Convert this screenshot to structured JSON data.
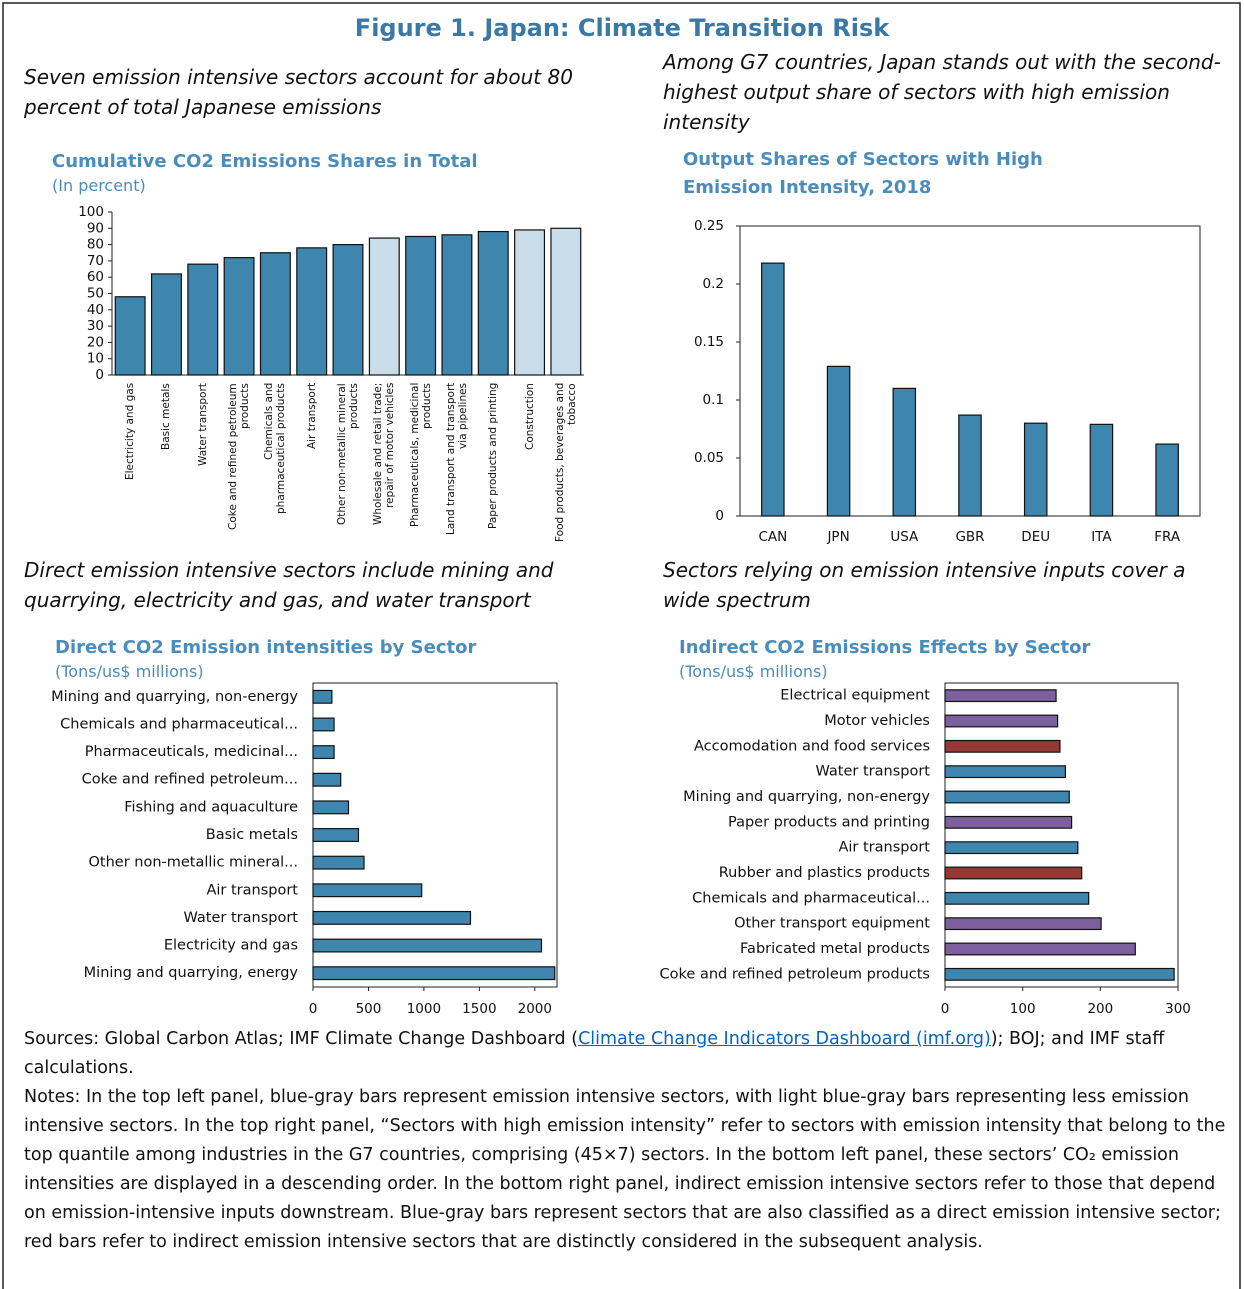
{
  "title": "Figure 1. Japan: Climate Transition Risk",
  "chart_data": [
    {
      "type": "bar",
      "orientation": "vertical",
      "caption": "Seven emission intensive sectors account for about 80 percent of total Japanese emissions",
      "title": "Cumulative CO2 Emissions Shares in Total",
      "subtitle": "(In percent)",
      "categories": [
        "Electricity and gas",
        "Basic metals",
        "Water transport",
        "Coke and refined petroleum products",
        "Chemicals and pharmaceutical products",
        "Air transport",
        "Other non-metallic mineral products",
        "Wholesale and retail trade; repair of motor vehicles",
        "Pharmaceuticals, medicinal products",
        "Land transport and transport via pipelines",
        "Paper products and printing",
        "Construction",
        "Food products, beverages and tobacco"
      ],
      "values": [
        48,
        62,
        68,
        72,
        75,
        78,
        80,
        84,
        85,
        86,
        88,
        89,
        90
      ],
      "colors": [
        "#3f86ae",
        "#3f86ae",
        "#3f86ae",
        "#3f86ae",
        "#3f86ae",
        "#3f86ae",
        "#3f86ae",
        "#c8dcea",
        "#3f86ae",
        "#3f86ae",
        "#3f86ae",
        "#c8dcea",
        "#c8dcea"
      ],
      "ylim": [
        0,
        100
      ],
      "yticks": [
        0,
        10,
        20,
        30,
        40,
        50,
        60,
        70,
        80,
        90,
        100
      ]
    },
    {
      "type": "bar",
      "orientation": "vertical",
      "caption": "Among G7 countries, Japan stands out with the second-highest output share of sectors with high emission intensity",
      "title": "Output Shares of Sectors with High Emission Intensity, 2018",
      "categories": [
        "CAN",
        "JPN",
        "USA",
        "GBR",
        "DEU",
        "ITA",
        "FRA"
      ],
      "values": [
        0.218,
        0.129,
        0.11,
        0.087,
        0.08,
        0.079,
        0.062
      ],
      "color": "#3f86ae",
      "ylim": [
        0,
        0.25
      ],
      "yticks": [
        0,
        0.05,
        0.1,
        0.15,
        0.2,
        0.25
      ]
    },
    {
      "type": "bar",
      "orientation": "horizontal",
      "caption": "Direct emission intensive sectors include mining and quarrying, electricity and gas, and water transport",
      "title": "Direct CO2 Emission intensities by Sector",
      "subtitle": "(Tons/us$ millions)",
      "categories": [
        "Mining and quarrying, non-energy",
        "Chemicals and pharmaceutical...",
        "Pharmaceuticals, medicinal...",
        "Coke and refined petroleum...",
        "Fishing and aquaculture",
        "Basic metals",
        "Other non-metallic mineral...",
        "Air transport",
        "Water transport",
        "Electricity and gas",
        "Mining and quarrying, energy"
      ],
      "values": [
        170,
        190,
        190,
        250,
        320,
        410,
        460,
        980,
        1420,
        2060,
        2180
      ],
      "color": "#3f86ae",
      "xlim": [
        0,
        2200
      ],
      "xticks": [
        0,
        500,
        1000,
        1500,
        2000
      ]
    },
    {
      "type": "bar",
      "orientation": "horizontal",
      "caption": "Sectors relying on emission intensive inputs cover a wide spectrum",
      "title": "Indirect CO2 Emissions Effects by Sector",
      "subtitle": "(Tons/us$ millions)",
      "categories": [
        "Electrical equipment",
        "Motor vehicles",
        "Accomodation and food services",
        "Water transport",
        "Mining and quarrying, non-energy",
        "Paper products and printing",
        "Air transport",
        "Rubber and plastics products",
        "Chemicals and pharmaceutical...",
        "Other transport equipment",
        "Fabricated metal products",
        "Coke and refined petroleum products"
      ],
      "values": [
        143,
        145,
        148,
        155,
        160,
        163,
        171,
        176,
        185,
        201,
        245,
        295
      ],
      "colors": [
        "#7d5f9e",
        "#7d5f9e",
        "#953735",
        "#3f86ae",
        "#3f86ae",
        "#7d5f9e",
        "#3f86ae",
        "#953735",
        "#3f86ae",
        "#7d5f9e",
        "#7d5f9e",
        "#3f86ae"
      ],
      "xlim": [
        0,
        300
      ],
      "xticks": [
        0,
        100,
        200,
        300
      ]
    }
  ],
  "sources": {
    "prefix": "Sources: Global Carbon Atlas; IMF Climate Change Dashboard (",
    "link": "Climate Change Indicators Dashboard (imf.org)",
    "suffix": "); BOJ; and IMF staff calculations."
  },
  "notes": "Notes: In the top left panel, blue-gray bars represent emission intensive sectors, with light blue-gray bars representing less emission intensive sectors. In the top right panel, “Sectors with high emission intensity” refer to sectors with emission intensity that belong to the top quantile among industries in the G7 countries, comprising (45×7) sectors. In the bottom left panel, these sectors’ CO₂ emission intensities are displayed in a descending order. In the bottom right panel, indirect emission intensive sectors refer to those that depend on emission-intensive inputs downstream. Blue-gray bars represent sectors that are also classified as a direct emission intensive sector; red bars refer to indirect emission intensive sectors that are distinctly considered in the subsequent analysis."
}
